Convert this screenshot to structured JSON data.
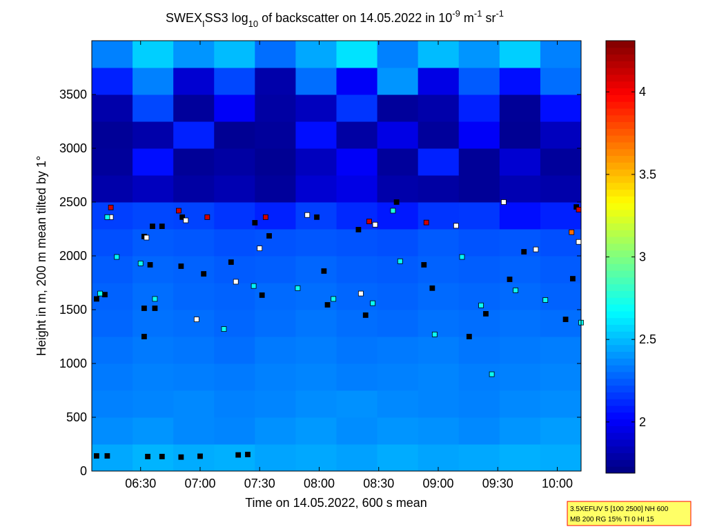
{
  "chart_data": {
    "type": "heatmap",
    "title": [
      "SWEX",
      "I",
      "SS3 log",
      "10",
      " of backscatter on 14.05.2022 in 10",
      "-9",
      " m",
      "-1",
      " sr",
      "-1"
    ],
    "xlabel": "Time on 14.05.2022, 600 s mean",
    "ylabel": "Height in m, 200 m mean tilted by 1°",
    "xlim": [
      6.09,
      10.2
    ],
    "xticks": [
      {
        "value": 6.5,
        "label": "06:30"
      },
      {
        "value": 7.0,
        "label": "07:00"
      },
      {
        "value": 7.5,
        "label": "07:30"
      },
      {
        "value": 8.0,
        "label": "08:00"
      },
      {
        "value": 8.5,
        "label": "08:30"
      },
      {
        "value": 9.0,
        "label": "09:00"
      },
      {
        "value": 9.5,
        "label": "09:30"
      },
      {
        "value": 10.0,
        "label": "10:00"
      }
    ],
    "ylim": [
      0,
      4000
    ],
    "yticks": [
      0,
      500,
      1000,
      1500,
      2000,
      2500,
      3000,
      3500
    ],
    "clim": [
      1.69,
      4.31
    ],
    "cticks": [
      2,
      2.5,
      3,
      3.5,
      4
    ],
    "colormap": "jet",
    "heatmap": {
      "z": [
        [
          2.45,
          2.48,
          2.46,
          2.47,
          2.44,
          2.45,
          2.43,
          2.46,
          2.44,
          2.45,
          2.47,
          2.46
        ],
        [
          2.38,
          2.4,
          2.37,
          2.36,
          2.39,
          2.41,
          2.38,
          2.4,
          2.39,
          2.37,
          2.4,
          2.42
        ],
        [
          2.35,
          2.36,
          2.37,
          2.35,
          2.36,
          2.38,
          2.39,
          2.37,
          2.36,
          2.35,
          2.37,
          2.38
        ],
        [
          2.33,
          2.35,
          2.34,
          2.33,
          2.35,
          2.36,
          2.34,
          2.35,
          2.36,
          2.34,
          2.35,
          2.36
        ],
        [
          2.31,
          2.33,
          2.32,
          2.3,
          2.33,
          2.34,
          2.32,
          2.33,
          2.34,
          2.32,
          2.33,
          2.34
        ],
        [
          2.28,
          2.31,
          2.3,
          2.28,
          2.3,
          2.32,
          2.3,
          2.29,
          2.31,
          2.3,
          2.31,
          2.3
        ],
        [
          2.27,
          2.3,
          2.28,
          2.27,
          2.29,
          2.3,
          2.28,
          2.27,
          2.29,
          2.28,
          2.29,
          2.27
        ],
        [
          2.25,
          2.28,
          2.27,
          2.25,
          2.26,
          2.28,
          2.26,
          2.25,
          2.27,
          2.26,
          2.27,
          2.25
        ],
        [
          2.22,
          2.25,
          2.24,
          2.22,
          2.23,
          2.24,
          2.23,
          2.22,
          2.25,
          2.23,
          2.24,
          2.22
        ],
        [
          2.18,
          2.2,
          2.19,
          2.15,
          2.1,
          2.18,
          2.12,
          2.08,
          2.15,
          2.16,
          2.05,
          2.1
        ],
        [
          1.8,
          1.85,
          1.78,
          1.82,
          1.76,
          1.9,
          1.95,
          1.8,
          1.78,
          1.75,
          1.82,
          1.8
        ],
        [
          1.76,
          2.05,
          1.75,
          1.78,
          1.74,
          1.85,
          2.0,
          1.76,
          2.1,
          1.75,
          1.9,
          1.76
        ],
        [
          1.75,
          1.8,
          2.1,
          1.74,
          1.76,
          2.05,
          1.78,
          1.95,
          1.76,
          2.0,
          1.74,
          1.85
        ],
        [
          1.8,
          2.2,
          1.76,
          2.0,
          1.78,
          1.85,
          2.15,
          1.76,
          1.8,
          2.1,
          1.75,
          2.05
        ],
        [
          2.1,
          2.35,
          1.9,
          2.2,
          1.8,
          2.3,
          2.0,
          2.4,
          1.95,
          2.25,
          2.05,
          2.3
        ],
        [
          2.35,
          2.55,
          2.4,
          2.5,
          2.3,
          2.45,
          2.6,
          2.35,
          2.5,
          2.4,
          2.55,
          2.35
        ]
      ]
    },
    "markers": [
      {
        "color": "#000000",
        "x": [
          6.13,
          6.22,
          6.56,
          6.68,
          6.84,
          7.0,
          7.32,
          7.4,
          6.13,
          6.2,
          6.53,
          6.6,
          6.68,
          6.58,
          6.53,
          6.62,
          6.53,
          6.85,
          6.84,
          7.03,
          7.26,
          7.46,
          7.58,
          7.52,
          7.98,
          8.04,
          8.07,
          8.33,
          8.39,
          8.65,
          8.88,
          8.95,
          9.26,
          9.4,
          9.6,
          9.72,
          10.07,
          10.13,
          10.16
        ],
        "y": [
          141,
          141,
          135,
          135,
          130,
          138,
          150,
          154,
          1600,
          1640,
          2180,
          2275,
          2275,
          1917,
          1513,
          1513,
          1250,
          2360,
          1904,
          1833,
          1942,
          2308,
          2186,
          1635,
          2360,
          1859,
          1545,
          2244,
          1449,
          2500,
          1917,
          1700,
          1250,
          1462,
          1782,
          2038,
          1410,
          1788,
          2455
        ]
      },
      {
        "color": "#ffffff",
        "x": [
          6.25,
          6.55,
          6.88,
          7.3,
          7.5,
          7.9,
          8.47,
          9.15,
          9.55,
          9.82,
          10.18,
          6.97,
          8.35
        ],
        "y": [
          2360,
          2170,
          2330,
          1760,
          2070,
          2380,
          2290,
          2280,
          2500,
          2060,
          2130,
          1410,
          1650
        ]
      },
      {
        "x": [
          6.16,
          6.22,
          6.3,
          6.5,
          6.62,
          7.2,
          7.45,
          7.82,
          8.12,
          8.45,
          8.62,
          8.68,
          8.97,
          9.2,
          9.36,
          9.45,
          9.65,
          9.9,
          10.2,
          6.25,
          6.82,
          7.06,
          7.55,
          8.42,
          8.9,
          10.18,
          10.12
        ],
        "y": [
          1650,
          2360,
          1990,
          1930,
          1600,
          1320,
          1720,
          1700,
          1600,
          1560,
          2420,
          1950,
          1270,
          1990,
          1540,
          900,
          1680,
          1590,
          1380,
          2450,
          2420,
          2360,
          2360,
          2320,
          2310,
          2430,
          2220
        ],
        "values": [
          2.7,
          2.7,
          2.65,
          2.7,
          2.7,
          2.7,
          2.65,
          2.7,
          2.7,
          2.7,
          2.75,
          2.7,
          2.7,
          2.65,
          2.7,
          2.7,
          2.7,
          2.7,
          2.7,
          4.1,
          4.1,
          4.1,
          4.1,
          4.1,
          4.1,
          4.1,
          3.7
        ]
      }
    ],
    "annotation": [
      "3.5XEFUV 5 [100 2500] NH 600",
      "MB 200 RG 15% TI 0 HI 15"
    ]
  }
}
